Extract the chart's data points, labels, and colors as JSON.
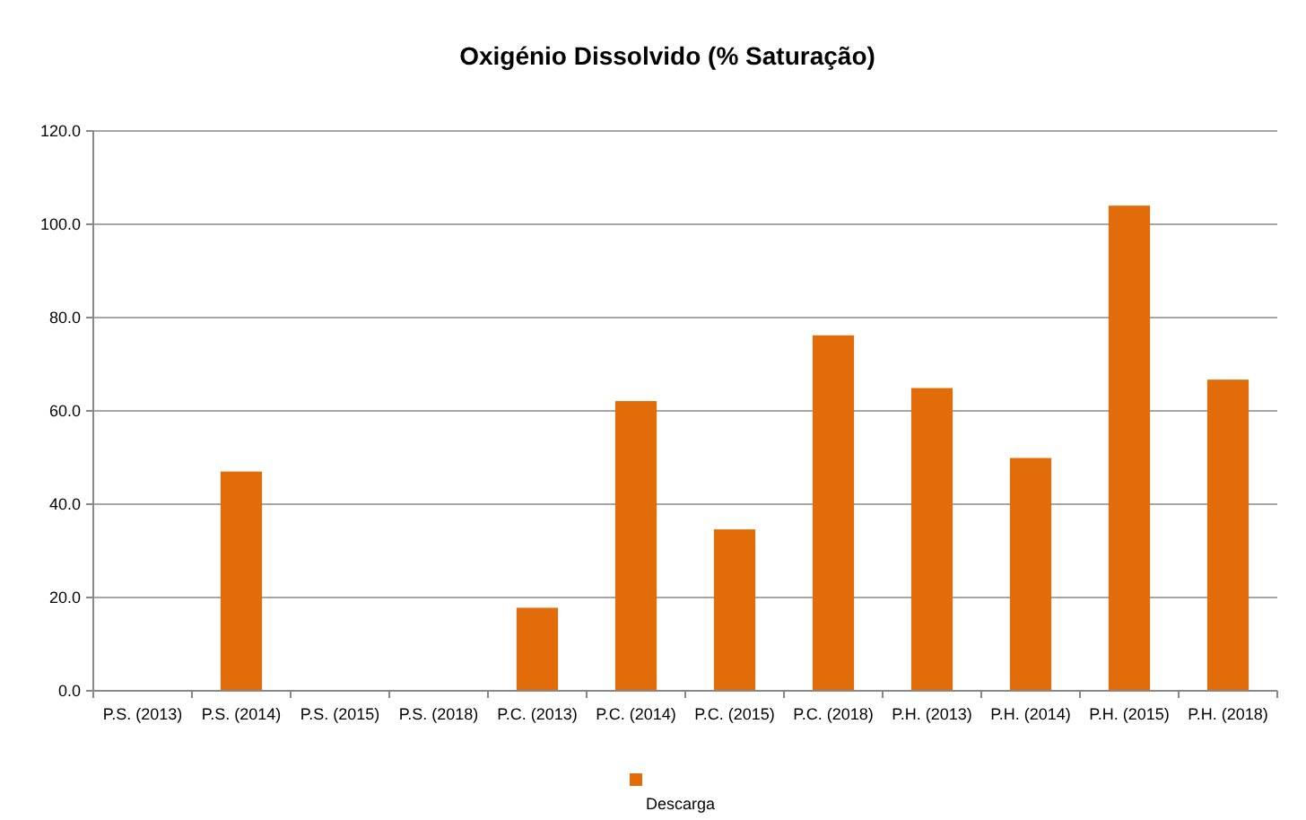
{
  "chart_data": {
    "type": "bar",
    "title": "Oxigénio Dissolvido (% Saturação)",
    "categories": [
      "P.S. (2013)",
      "P.S. (2014)",
      "P.S. (2015)",
      "P.S. (2018)",
      "P.C. (2013)",
      "P.C. (2014)",
      "P.C. (2015)",
      "P.C. (2018)",
      "P.H. (2013)",
      "P.H. (2014)",
      "P.H. (2015)",
      "P.H. (2018)"
    ],
    "series": [
      {
        "name": "Descarga",
        "color": "#e36c0a",
        "values": [
          null,
          47.0,
          null,
          null,
          17.8,
          62.1,
          34.6,
          76.2,
          64.9,
          49.9,
          104.0,
          66.7
        ]
      }
    ],
    "ylim": [
      0,
      120
    ],
    "yticks": [
      {
        "value": 0,
        "label": "0.0"
      },
      {
        "value": 20,
        "label": "20.0"
      },
      {
        "value": 40,
        "label": "40.0"
      },
      {
        "value": 60,
        "label": "60.0"
      },
      {
        "value": 80,
        "label": "80.0"
      },
      {
        "value": 100,
        "label": "100.0"
      },
      {
        "value": 120,
        "label": "120.0"
      }
    ],
    "grid": "y",
    "legend": "bottom"
  }
}
